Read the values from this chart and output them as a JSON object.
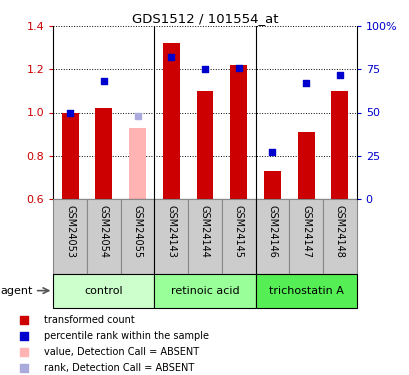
{
  "title": "GDS1512 / 101554_at",
  "samples": [
    "GSM24053",
    "GSM24054",
    "GSM24055",
    "GSM24143",
    "GSM24144",
    "GSM24145",
    "GSM24146",
    "GSM24147",
    "GSM24148"
  ],
  "bar_values": [
    1.0,
    1.02,
    0.93,
    1.32,
    1.1,
    1.22,
    0.73,
    0.91,
    1.1
  ],
  "bar_colors": [
    "#cc0000",
    "#cc0000",
    "#ffb3b3",
    "#cc0000",
    "#cc0000",
    "#cc0000",
    "#cc0000",
    "#cc0000",
    "#cc0000"
  ],
  "dot_values": [
    50,
    68,
    48,
    82,
    75,
    76,
    27,
    67,
    72
  ],
  "dot_colors": [
    "#0000cc",
    "#0000cc",
    "#aaaadd",
    "#0000cc",
    "#0000cc",
    "#0000cc",
    "#0000cc",
    "#0000cc",
    "#0000cc"
  ],
  "absent_indices": [
    2
  ],
  "ylim_left": [
    0.6,
    1.4
  ],
  "ylim_right": [
    0,
    100
  ],
  "yticks_left": [
    0.6,
    0.8,
    1.0,
    1.2,
    1.4
  ],
  "yticks_right": [
    0,
    25,
    50,
    75,
    100
  ],
  "yticklabels_right": [
    "0",
    "25",
    "50",
    "75",
    "100%"
  ],
  "group_boundaries": [
    2.5,
    5.5
  ],
  "groups": [
    {
      "label": "control",
      "indices": [
        0,
        1,
        2
      ],
      "color": "#ccffcc"
    },
    {
      "label": "retinoic acid",
      "indices": [
        3,
        4,
        5
      ],
      "color": "#99ff99"
    },
    {
      "label": "trichostatin A",
      "indices": [
        6,
        7,
        8
      ],
      "color": "#55ee55"
    }
  ],
  "agent_label": "agent",
  "left_tick_color": "#cc0000",
  "right_tick_color": "#0000cc",
  "legend_items": [
    {
      "label": "transformed count",
      "color": "#cc0000"
    },
    {
      "label": "percentile rank within the sample",
      "color": "#0000cc"
    },
    {
      "label": "value, Detection Call = ABSENT",
      "color": "#ffb3b3"
    },
    {
      "label": "rank, Detection Call = ABSENT",
      "color": "#aaaadd"
    }
  ],
  "bar_width": 0.5,
  "dot_size": 20,
  "sample_cell_color": "#cccccc",
  "sample_cell_edge": "#888888"
}
